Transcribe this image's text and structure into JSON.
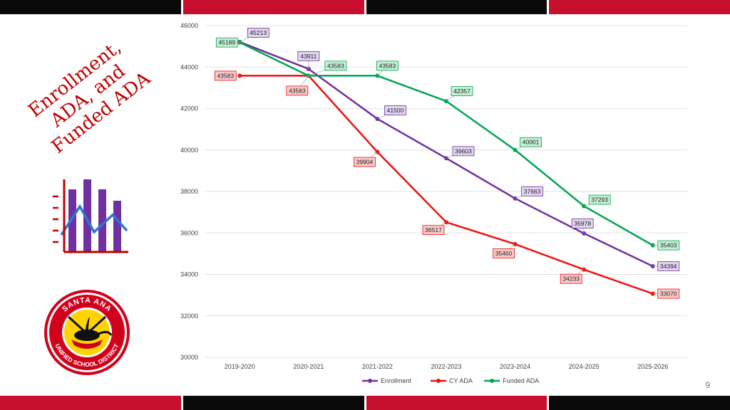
{
  "slide": {
    "title_lines": [
      "Enrollment,",
      "ADA, and",
      "Funded ADA"
    ],
    "page_number": "9",
    "logo": {
      "text_top": "SANTA ANA",
      "text_bottom": "UNIFIED SCHOOL DISTRICT"
    },
    "colors": {
      "title": "#c00000",
      "bar_black": "#0a0a0a",
      "bar_red": "#c8102e"
    }
  },
  "chart_data": {
    "type": "line",
    "title": "",
    "xlabel": "",
    "ylabel": "",
    "categories": [
      "2019-2020",
      "2020-2021",
      "2021-2022",
      "2022-2023",
      "2023-2024",
      "2024-2025",
      "2025-2026"
    ],
    "ylim": [
      30000,
      46000
    ],
    "yticks": [
      30000,
      32000,
      34000,
      36000,
      38000,
      40000,
      42000,
      44000,
      46000
    ],
    "grid": true,
    "legend_position": "bottom",
    "series": [
      {
        "name": "Enrollment",
        "color": "#7030a0",
        "label_fill": "#e2d5ef",
        "values": [
          45213,
          43911,
          41500,
          39603,
          37663,
          35978,
          34394
        ],
        "labels": [
          "45213",
          "43911",
          "41500",
          "39603",
          "37663",
          "35978",
          "34394"
        ]
      },
      {
        "name": "CY ADA",
        "color": "#ee1111",
        "label_fill": "#f9c9c9",
        "values": [
          43583,
          43583,
          39904,
          36517,
          35460,
          34233,
          33070
        ],
        "labels": [
          "43583",
          "43583",
          "39904",
          "36517",
          "35460",
          "34233",
          "33070"
        ]
      },
      {
        "name": "Funded ADA",
        "color": "#00a550",
        "label_fill": "#c6efd4",
        "values": [
          45189,
          43583,
          43583,
          42357,
          40001,
          37293,
          35403
        ],
        "labels": [
          "45189",
          "43583",
          "43583",
          "42357",
          "40001",
          "37293",
          "35403"
        ]
      }
    ]
  }
}
